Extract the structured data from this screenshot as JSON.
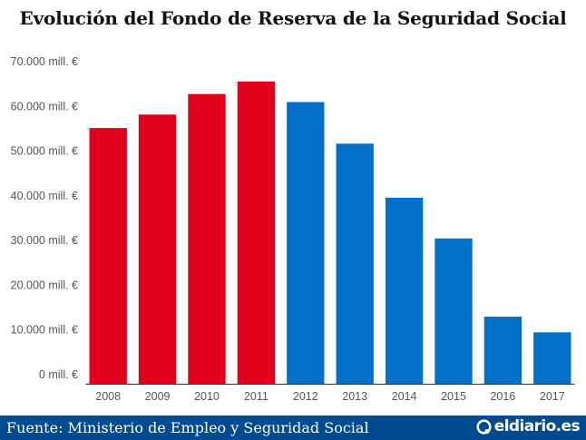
{
  "chart_data": {
    "type": "bar",
    "title": "Evolución del Fondo de Reserva de la Seguridad Social",
    "xlabel": "",
    "ylabel": "",
    "categories": [
      "2008",
      "2009",
      "2010",
      "2011",
      "2012",
      "2013",
      "2014",
      "2015",
      "2016",
      "2017"
    ],
    "values": [
      57200,
      60200,
      64800,
      67600,
      63000,
      53700,
      41600,
      32500,
      15000,
      11500
    ],
    "bar_colors": [
      "#e0001b",
      "#e0001b",
      "#e0001b",
      "#e0001b",
      "#0070c9",
      "#0070c9",
      "#0070c9",
      "#0070c9",
      "#0070c9",
      "#0070c9"
    ],
    "ylim": [
      0,
      70000
    ],
    "yticks": [
      0,
      10000,
      20000,
      30000,
      40000,
      50000,
      60000,
      70000
    ],
    "ytick_labels": [
      "0 mill. €",
      "10.000 mill. €",
      "20.000 mill. €",
      "30.000 mill. €",
      "40.000 mill. €",
      "50.000 mill. €",
      "60.000 mill. €",
      "70.000 mill. €"
    ],
    "grid": false,
    "legend": "none"
  },
  "footer": {
    "source": "Fuente: Ministerio de Empleo y Seguridad Social",
    "brand": "eldiario.es",
    "background": "#004a8f"
  },
  "colors": {
    "red": "#e0001b",
    "blue": "#0070c9",
    "axis_text": "#555555",
    "baseline": "#333333"
  }
}
